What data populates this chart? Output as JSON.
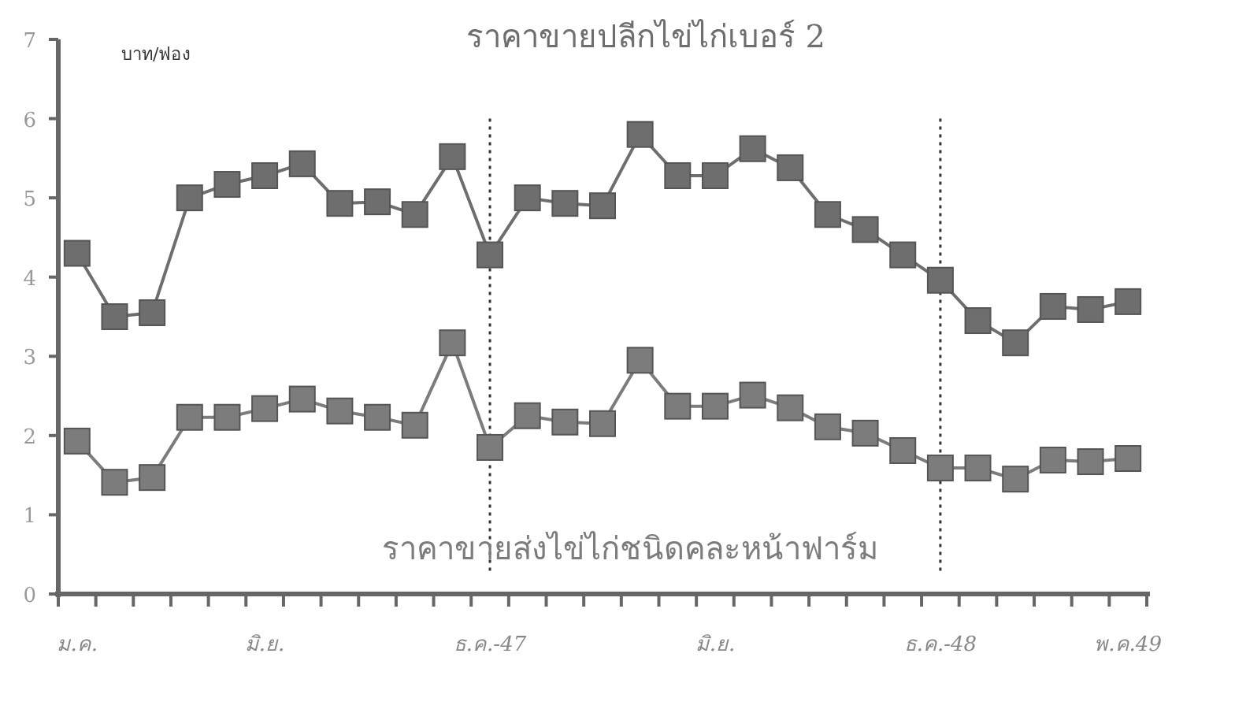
{
  "chart_data": {
    "type": "line",
    "ylabel": "บาท/ฟอง",
    "categories": [
      "ม.ค.",
      null,
      null,
      null,
      null,
      "มิ.ย.",
      null,
      null,
      null,
      null,
      null,
      "ธ.ค.-47",
      null,
      null,
      null,
      null,
      null,
      "มิ.ย.",
      null,
      null,
      null,
      null,
      null,
      "ธ.ค.-48",
      null,
      null,
      null,
      null,
      "พ.ค.49"
    ],
    "series": [
      {
        "name": "ราคาขายปลีกไข่ไก่เบอร์ 2",
        "color": "#6e6e6e",
        "values": [
          4.3,
          3.5,
          3.55,
          5.0,
          5.17,
          5.28,
          5.43,
          4.93,
          4.95,
          4.79,
          5.52,
          4.28,
          5.0,
          4.93,
          4.9,
          5.8,
          5.28,
          5.28,
          5.62,
          5.38,
          4.79,
          4.6,
          4.28,
          3.96,
          3.45,
          3.17,
          3.63,
          3.59,
          3.69
        ]
      },
      {
        "name": "ราคาขายส่งไข่ไก่ชนิดคละหน้าฟาร์ม",
        "color": "#7c7c7c",
        "values": [
          1.93,
          1.41,
          1.47,
          2.23,
          2.23,
          2.34,
          2.46,
          2.31,
          2.23,
          2.13,
          3.17,
          1.85,
          2.25,
          2.17,
          2.15,
          2.95,
          2.37,
          2.37,
          2.51,
          2.35,
          2.11,
          2.03,
          1.81,
          1.59,
          1.59,
          1.45,
          1.69,
          1.67,
          1.71
        ]
      }
    ],
    "ylim": [
      0,
      7
    ],
    "yticks": [
      0,
      1,
      2,
      3,
      4,
      5,
      6,
      7
    ],
    "marker": "square",
    "line_style": "solid",
    "grid": false,
    "legend": false,
    "ref_lines": [
      {
        "axis": "x",
        "value": "ธ.ค.-47",
        "line_style": "dotted",
        "color": "#333333"
      },
      {
        "axis": "x",
        "value": "ธ.ค.-48",
        "line_style": "dotted",
        "color": "#333333"
      }
    ]
  }
}
